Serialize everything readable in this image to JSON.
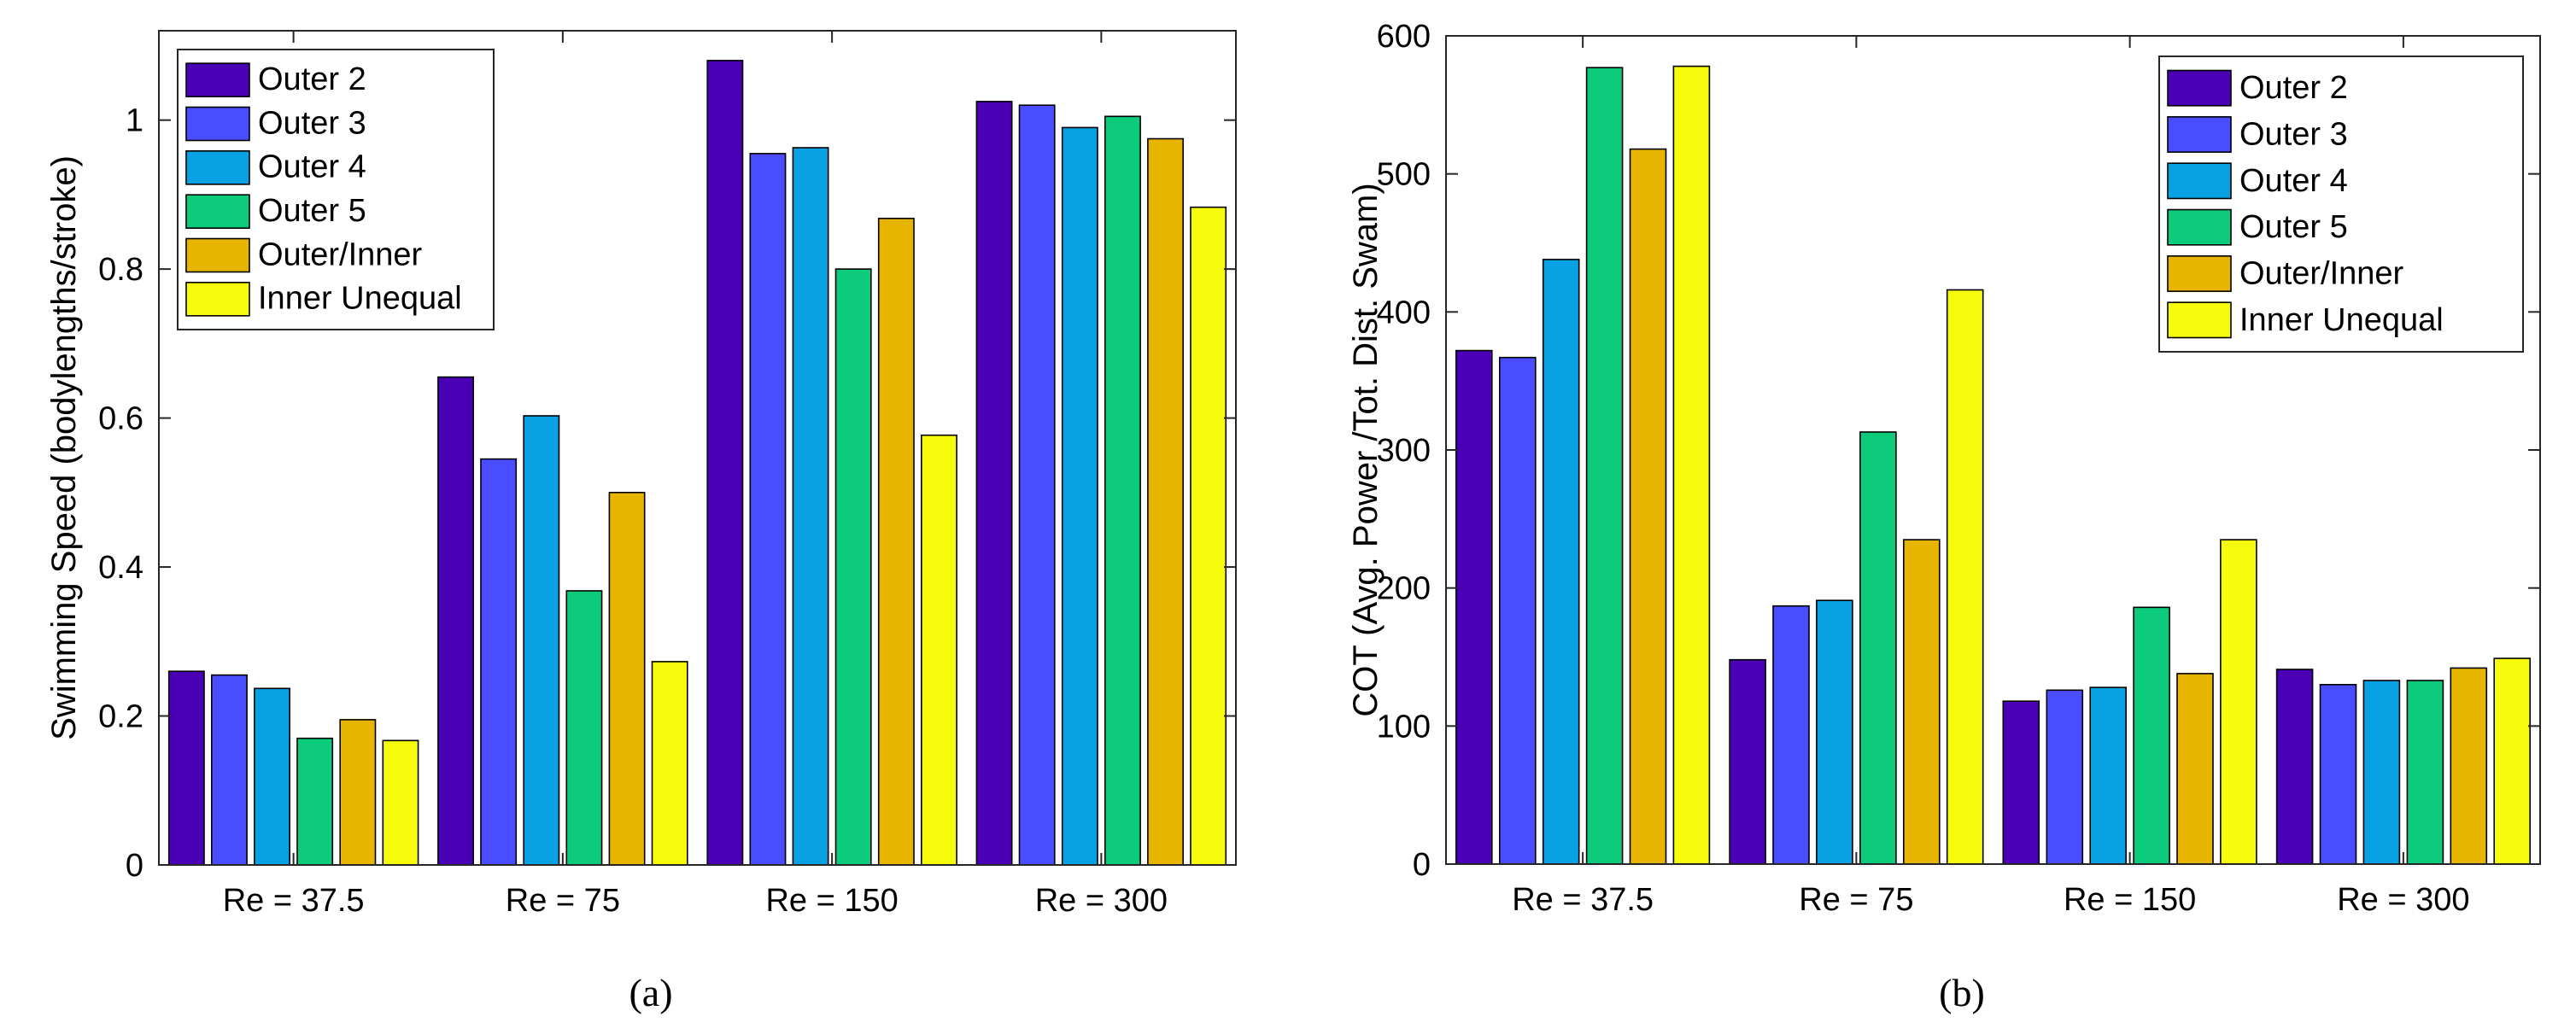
{
  "chart_data": [
    {
      "type": "bar",
      "panel_label": "(a)",
      "categories": [
        "Re = 37.5",
        "Re = 75",
        "Re = 150",
        "Re = 300"
      ],
      "series": [
        {
          "name": "Outer 2",
          "color": "#4a00b4",
          "values": [
            0.26,
            0.655,
            1.08,
            1.025
          ]
        },
        {
          "name": "Outer 3",
          "color": "#4a4cff",
          "values": [
            0.255,
            0.545,
            0.955,
            1.02
          ]
        },
        {
          "name": "Outer 4",
          "color": "#08a2e4",
          "values": [
            0.237,
            0.603,
            0.963,
            0.99
          ]
        },
        {
          "name": "Outer 5",
          "color": "#0ccb7b",
          "values": [
            0.17,
            0.368,
            0.8,
            1.005
          ]
        },
        {
          "name": "Outer/Inner",
          "color": "#e7b500",
          "values": [
            0.195,
            0.5,
            0.868,
            0.975
          ]
        },
        {
          "name": "Inner Unequal",
          "color": "#f6fa0b",
          "values": [
            0.167,
            0.273,
            0.577,
            0.883
          ]
        }
      ],
      "title": "",
      "xlabel": "",
      "ylabel": "Swimming Speed (bodylengths/stroke)",
      "ylim": [
        0,
        1.12
      ],
      "yticks": [
        0,
        0.2,
        0.4,
        0.6,
        0.8,
        1
      ],
      "ytick_labels": [
        "0",
        "0.2",
        "0.4",
        "0.6",
        "0.8",
        "1"
      ],
      "legend": "top-left"
    },
    {
      "type": "bar",
      "panel_label": "(b)",
      "categories": [
        "Re = 37.5",
        "Re = 75",
        "Re = 150",
        "Re = 300"
      ],
      "series": [
        {
          "name": "Outer 2",
          "color": "#4a00b4",
          "values": [
            372,
            148,
            118,
            141
          ]
        },
        {
          "name": "Outer 3",
          "color": "#4a4cff",
          "values": [
            367,
            187,
            126,
            130
          ]
        },
        {
          "name": "Outer 4",
          "color": "#08a2e4",
          "values": [
            438,
            191,
            128,
            133
          ]
        },
        {
          "name": "Outer 5",
          "color": "#0ccb7b",
          "values": [
            577,
            313,
            186,
            133
          ]
        },
        {
          "name": "Outer/Inner",
          "color": "#e7b500",
          "values": [
            518,
            235,
            138,
            142
          ]
        },
        {
          "name": "Inner Unequal",
          "color": "#f6fa0b",
          "values": [
            578,
            416,
            235,
            149
          ]
        }
      ],
      "title": "",
      "xlabel": "",
      "ylabel": "COT (Avg. Power /Tot. Dist. Swam)",
      "ylim": [
        0,
        600
      ],
      "yticks": [
        0,
        100,
        200,
        300,
        400,
        500,
        600
      ],
      "ytick_labels": [
        "0",
        "100",
        "200",
        "300",
        "400",
        "500",
        "600"
      ],
      "legend": "top-right"
    }
  ]
}
